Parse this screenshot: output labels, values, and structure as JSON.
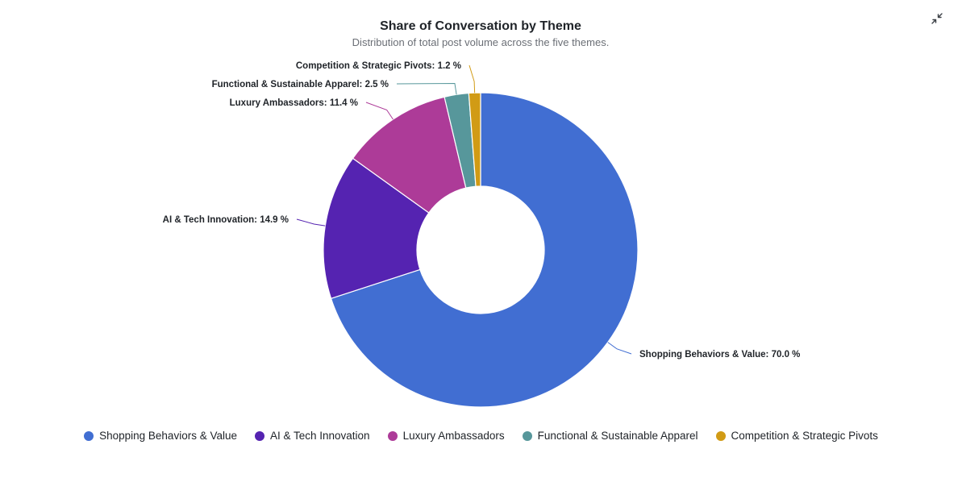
{
  "toolbar": {
    "collapse_icon": "collapse-arrows-icon"
  },
  "chart_data": {
    "type": "pie",
    "donut": true,
    "title": "Share of Conversation by Theme",
    "subtitle": "Distribution of total post volume across the five themes.",
    "legend_position": "bottom",
    "value_suffix": " %",
    "series": [
      {
        "name": "Shopping Behaviors & Value",
        "value": 70.0,
        "color": "#416ed2"
      },
      {
        "name": "AI & Tech Innovation",
        "value": 14.9,
        "color": "#5523b1"
      },
      {
        "name": "Luxury Ambassadors",
        "value": 11.4,
        "color": "#ad3b98"
      },
      {
        "name": "Functional & Sustainable Apparel",
        "value": 2.5,
        "color": "#57979b"
      },
      {
        "name": "Competition & Strategic Pivots",
        "value": 1.2,
        "color": "#d19b15"
      }
    ]
  }
}
